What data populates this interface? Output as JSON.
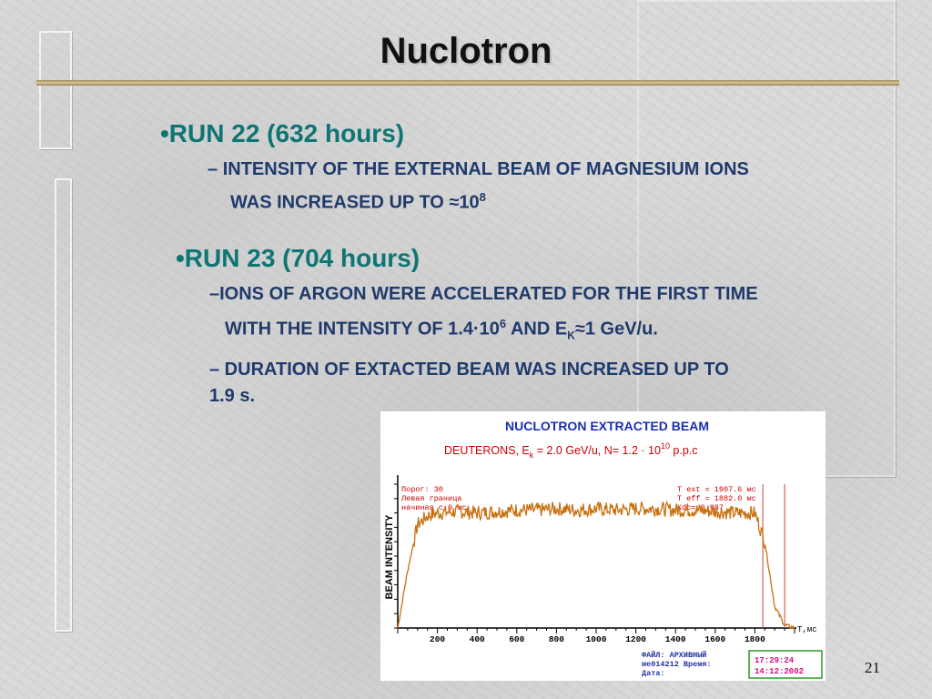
{
  "title": "Nuclotron",
  "page_number": "21",
  "runs": [
    {
      "heading": "•RUN 22 (632 hours)",
      "items": [
        {
          "dash": "–",
          "line1": "INTENSITY OF THE EXTERNAL BEAM OF MAGNESIUM IONS",
          "line2": "WAS INCREASED UP TO ≈10",
          "sup": "8"
        }
      ]
    },
    {
      "heading": "•RUN 23 (704 hours)",
      "items": [
        {
          "dash": "–",
          "line1": "IONS OF ARGON WERE ACCELERATED FOR THE FIRST TIME",
          "line2a": "WITH THE INTENSITY OF 1.4·10",
          "sup": "6",
          "line2b": " AND E",
          "sub": "K",
          "line2c": "≈1 GeV/u."
        },
        {
          "dash": "–",
          "line1": " DURATION OF EXTACTED BEAM WAS INCREASED UP TO",
          "line2": "1.9 s."
        }
      ]
    }
  ],
  "figure": {
    "title": "NUCLOTRON  EXTRACTED  BEAM",
    "subtitle_a": "DEUTERONS,  E",
    "subtitle_sub": "k",
    "subtitle_b": " = 2.0 GeV/u,  N= 1.2 · 10",
    "subtitle_sup": "10",
    "subtitle_c": " p.p.c",
    "info_left": [
      "Порог:  30",
      "Левая граница",
      "начиная с 0 мс"
    ],
    "info_right": [
      "T ext = 1907.6 мс",
      "T eff = 1882.0 мс",
      "Kdc= 0.987"
    ],
    "footer_left": [
      "ФАЙЛ:  АРХИВНЫЙ",
      "ме014212  Время:",
      "          Дата:"
    ],
    "footer_box": [
      "17:29:24",
      "14:12:2002"
    ],
    "colors": {
      "trace": "#c87010",
      "axis": "#000000",
      "marker": "#d04040",
      "title": "#1a2fb0",
      "subtitle": "#cc0000",
      "info": "#cc0000",
      "footer_left": "#2030a0",
      "footer_box": "#d01080",
      "footer_border": "#2a9a2a"
    }
  },
  "chart_data": {
    "type": "line",
    "xlabel": "T,мс",
    "ylabel": "BEAM  INTENSITY",
    "x_ticks": [
      200,
      400,
      600,
      800,
      1000,
      1200,
      1400,
      1600,
      1800
    ],
    "xlim": [
      0,
      2000
    ],
    "series": [
      {
        "x": [
          0,
          50,
          100,
          150,
          200,
          300,
          400,
          500,
          600,
          700,
          800,
          900,
          1000,
          1100,
          1200,
          1300,
          1400,
          1500,
          1600,
          1700,
          1800,
          1850,
          1900,
          1950,
          2000
        ],
        "values": [
          0,
          40,
          72,
          78,
          80,
          81,
          80,
          81,
          82,
          82,
          83,
          82,
          83,
          82,
          83,
          83,
          82,
          82,
          81,
          80,
          80,
          60,
          15,
          2,
          0
        ]
      }
    ],
    "markers_x": [
      1840,
      1950
    ]
  }
}
